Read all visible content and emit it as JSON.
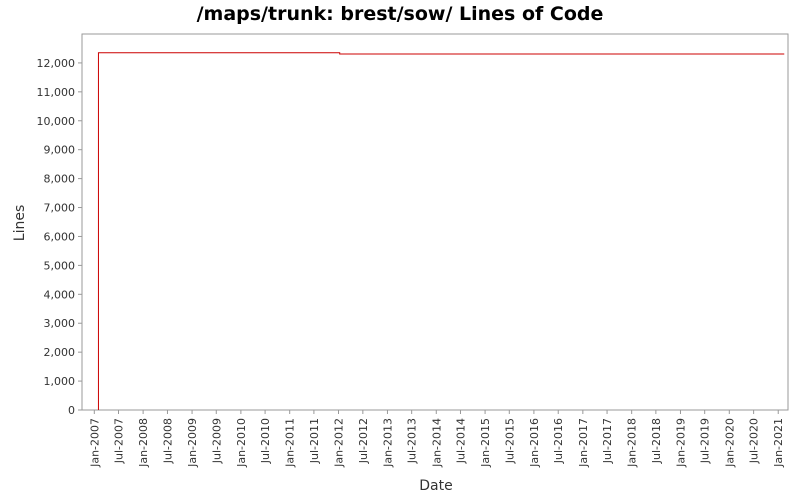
{
  "chart_data": {
    "type": "line",
    "title": "/maps/trunk: brest/sow/ Lines of Code",
    "xlabel": "Date",
    "ylabel": "Lines",
    "y_ticks": [
      "0",
      "1,000",
      "2,000",
      "3,000",
      "4,000",
      "5,000",
      "6,000",
      "7,000",
      "8,000",
      "9,000",
      "10,000",
      "11,000",
      "12,000"
    ],
    "ylim": [
      0,
      13000
    ],
    "x_ticks": [
      "Jan-2007",
      "Jul-2007",
      "Jan-2008",
      "Jul-2008",
      "Jan-2009",
      "Jul-2009",
      "Jan-2010",
      "Jul-2010",
      "Jan-2011",
      "Jul-2011",
      "Jan-2012",
      "Jul-2012",
      "Jan-2013",
      "Jul-2013",
      "Jan-2014",
      "Jul-2014",
      "Jan-2015",
      "Jul-2015",
      "Jan-2016",
      "Jul-2016",
      "Jan-2017",
      "Jul-2017",
      "Jan-2018",
      "Jul-2018",
      "Jan-2019",
      "Jul-2019",
      "Jan-2020",
      "Jul-2020",
      "Jan-2021"
    ],
    "xlim": [
      "2006-10-01",
      "2021-03-15"
    ],
    "grid": false,
    "legend": false,
    "series": [
      {
        "color": "#cc0000",
        "step": true,
        "points": [
          {
            "x": "2007-02-01",
            "y": 0
          },
          {
            "x": "2007-02-01",
            "y": 12350
          },
          {
            "x": "2012-01-10",
            "y": 12350
          },
          {
            "x": "2012-01-10",
            "y": 12310
          },
          {
            "x": "2021-02-15",
            "y": 12310
          }
        ]
      }
    ]
  }
}
